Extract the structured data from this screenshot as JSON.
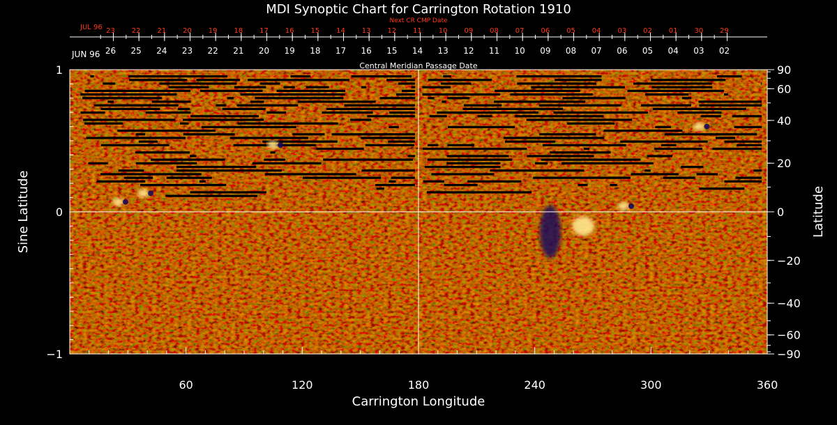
{
  "chart_data": {
    "type": "heatmap",
    "title": "MDI Synoptic Chart for Carrington Rotation 1910",
    "xlabel": "Carrington Longitude",
    "ylabel_left": "Sine Latitude",
    "ylabel_right": "Latitude",
    "xlim": [
      0,
      360
    ],
    "ylim": [
      -1,
      1
    ],
    "x_ticks": [
      60,
      120,
      180,
      240,
      300,
      360
    ],
    "y_left_ticks": [
      {
        "value": 1,
        "label": "1"
      },
      {
        "value": 0,
        "label": "0"
      },
      {
        "value": -1,
        "label": "−1"
      }
    ],
    "y_right_ticks": [
      {
        "lat": 90,
        "label": "90"
      },
      {
        "lat": 60,
        "label": "60"
      },
      {
        "lat": 40,
        "label": "40"
      },
      {
        "lat": 20,
        "label": "20"
      },
      {
        "lat": 0,
        "label": "0"
      },
      {
        "lat": -20,
        "label": "−20"
      },
      {
        "lat": -40,
        "label": "−40"
      },
      {
        "lat": -60,
        "label": "−60"
      },
      {
        "lat": -90,
        "label": "−90"
      }
    ],
    "cmp_axis": {
      "label": "Central Meridian Passage Date",
      "month_label": "JUN 96",
      "dates": [
        "26",
        "25",
        "24",
        "23",
        "22",
        "21",
        "20",
        "19",
        "18",
        "17",
        "16",
        "15",
        "14",
        "13",
        "12",
        "11",
        "10",
        "09",
        "08",
        "07",
        "06",
        "05",
        "04",
        "03",
        "02"
      ],
      "first_day_longitude": 22.5,
      "day_spacing_deg": 13.2
    },
    "next_cr_axis": {
      "label": "Next CR CMP Date",
      "month_label": "JUL 96",
      "dates": [
        "23",
        "22",
        "21",
        "20",
        "19",
        "18",
        "17",
        "16",
        "15",
        "14",
        "13",
        "12",
        "11",
        "10",
        "09",
        "08",
        "07",
        "06",
        "05",
        "04",
        "03",
        "02",
        "01",
        "30",
        "29"
      ],
      "first_day_longitude": 22.5,
      "day_spacing_deg": 13.2
    },
    "features": [
      {
        "type": "negative_polarity_region",
        "lon": 248,
        "sinlat": -0.14
      },
      {
        "type": "positive_polarity_region",
        "lon": 265,
        "sinlat": -0.1
      },
      {
        "type": "bipolar_region",
        "lon": 40,
        "sinlat": 0.13
      },
      {
        "type": "bipolar_region",
        "lon": 27,
        "sinlat": 0.07
      },
      {
        "type": "bipolar_region",
        "lon": 107,
        "sinlat": 0.47
      },
      {
        "type": "bipolar_region",
        "lon": 288,
        "sinlat": 0.04
      },
      {
        "type": "bipolar_region",
        "lon": 327,
        "sinlat": 0.6
      }
    ]
  }
}
